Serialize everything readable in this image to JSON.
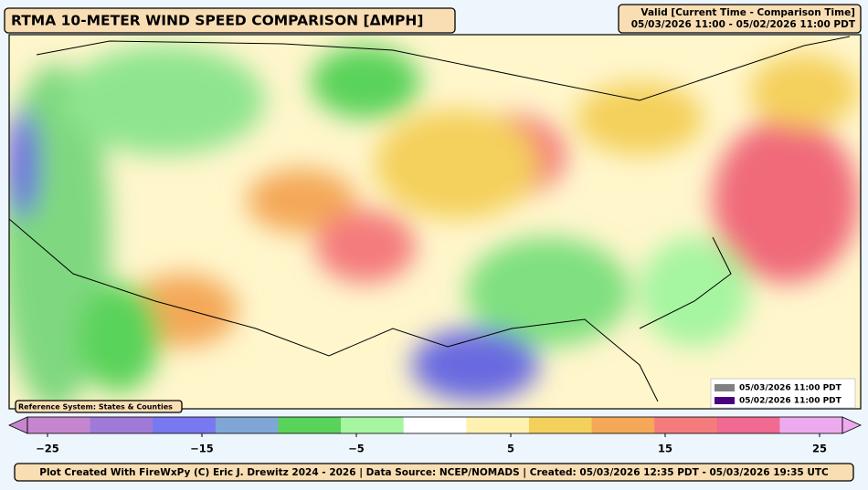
{
  "header": {
    "title": "RTMA 10-METER WIND SPEED COMPARISON [ΔMPH]",
    "valid_label": "Valid [Current Time - Comparison Time]",
    "valid_range": "05/03/2026 11:00 - 05/02/2026 11:00 PDT"
  },
  "map": {
    "reference_system": "Reference System: States & Counties",
    "legend": [
      {
        "name": "05/03/2026 11:00 PDT",
        "color": "#808080"
      },
      {
        "name": "05/02/2026 11:00 PDT",
        "color": "#4b0082"
      }
    ]
  },
  "colorbar": {
    "lim": [
      -25,
      25
    ],
    "ticks": [
      {
        "value": -25,
        "label": "−25"
      },
      {
        "value": -15,
        "label": "−15"
      },
      {
        "value": -5,
        "label": "−5"
      },
      5,
      15,
      25
    ],
    "colors": [
      "#c586cf",
      "#a07ad8",
      "#7878f0",
      "#7fa6d6",
      "#5ad35a",
      "#a6f5a0",
      "#ffffff",
      "#fff2b0",
      "#f4d05c",
      "#f4a858",
      "#f47c7c",
      "#f06a92",
      "#eeaaee"
    ]
  },
  "footer": {
    "credits": "Plot Created With FireWxPy (C) Eric J. Drewitz 2024 - 2026 | Data Source: NCEP/NOMADS | Created: 05/03/2026 12:35 PDT - 05/03/2026 19:35 UTC"
  }
}
